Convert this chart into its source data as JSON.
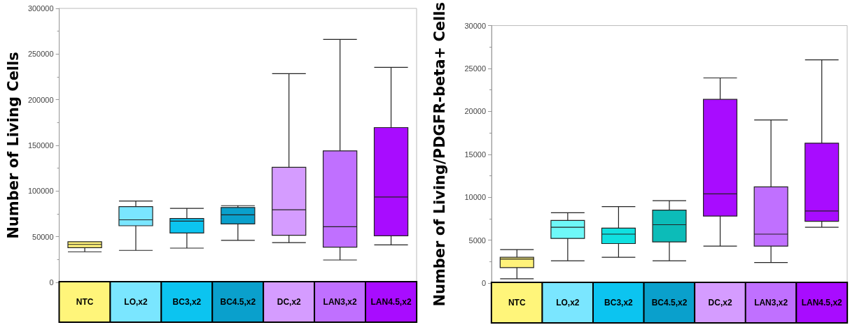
{
  "chart_data": [
    {
      "type": "box",
      "ylabel": "Number of Living Cells",
      "categories": [
        "NTC",
        "LO,x2",
        "BC3,x2",
        "BC4.5,x2",
        "DC,x2",
        "LAN3,x2",
        "LAN4.5,x2"
      ],
      "colors": [
        "#fff27a",
        "#7ae6ff",
        "#0cc4f0",
        "#0aa0cc",
        "#d59cff",
        "#c070ff",
        "#a80cff"
      ],
      "boxes": [
        {
          "low": 33500,
          "q1": 38000,
          "median": 41500,
          "q3": 44500,
          "high": 44500
        },
        {
          "low": 35000,
          "q1": 62000,
          "median": 68500,
          "q3": 83000,
          "high": 89000
        },
        {
          "low": 37500,
          "q1": 54000,
          "median": 67000,
          "q3": 70000,
          "high": 81000
        },
        {
          "low": 46000,
          "q1": 64000,
          "median": 74000,
          "q3": 82000,
          "high": 84000
        },
        {
          "low": 43500,
          "q1": 51500,
          "median": 79500,
          "q3": 126000,
          "high": 228500
        },
        {
          "low": 24500,
          "q1": 38500,
          "median": 61000,
          "q3": 144000,
          "high": 266000
        },
        {
          "low": 41000,
          "q1": 51000,
          "median": 93500,
          "q3": 169500,
          "high": 235500
        }
      ],
      "ylim": [
        0,
        300000
      ],
      "yticks": [
        0,
        50000,
        100000,
        150000,
        200000,
        250000,
        300000
      ]
    },
    {
      "type": "box",
      "ylabel": "Number of Living/PDGFR-beta+ Cells",
      "categories": [
        "NTC",
        "LO,x2",
        "BC3,x2",
        "BC4.5,x2",
        "DC,x2",
        "LAN3,x2",
        "LAN4.5,x2"
      ],
      "colors": [
        "#fff27a",
        "#6ef8f8",
        "#10e0e0",
        "#0cbcb8",
        "#a80cff",
        "#c070ff",
        "#a80cff"
      ],
      "boxes": [
        {
          "low": 500,
          "q1": 1800,
          "median": 2800,
          "q3": 3000,
          "high": 3900
        },
        {
          "low": 2600,
          "q1": 5200,
          "median": 6500,
          "q3": 7300,
          "high": 8200
        },
        {
          "low": 3000,
          "q1": 4600,
          "median": 5700,
          "q3": 6400,
          "high": 8900
        },
        {
          "low": 2600,
          "q1": 4800,
          "median": 6800,
          "q3": 8500,
          "high": 9600
        },
        {
          "low": 4300,
          "q1": 7800,
          "median": 10400,
          "q3": 21400,
          "high": 23900
        },
        {
          "low": 2400,
          "q1": 4300,
          "median": 5700,
          "q3": 11200,
          "high": 19000
        },
        {
          "low": 6500,
          "q1": 7200,
          "median": 8400,
          "q3": 16300,
          "high": 26000
        }
      ],
      "ylim": [
        0,
        30000
      ],
      "yticks": [
        0,
        5000,
        10000,
        15000,
        20000,
        25000,
        30000
      ]
    }
  ]
}
